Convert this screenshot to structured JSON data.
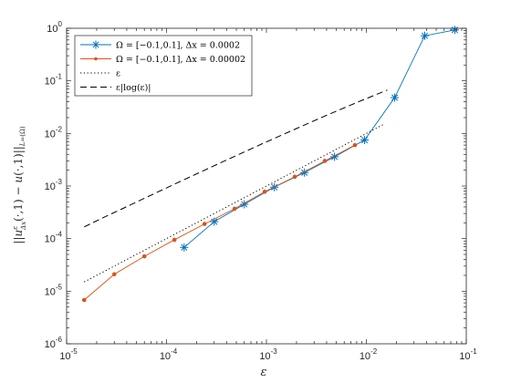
{
  "chart_data": {
    "type": "line",
    "x_scale": "log",
    "y_scale": "log",
    "xlim": [
      1e-05,
      0.1
    ],
    "ylim": [
      1e-06,
      1
    ],
    "xlabel": "ε",
    "ylabel": "||u^ε_Δx(·,1) − u(·,1)||_{L∞(Ω)}",
    "x_ticks": [
      {
        "base": "10",
        "exp": "-5",
        "value": 1e-05
      },
      {
        "base": "10",
        "exp": "-4",
        "value": 0.0001
      },
      {
        "base": "10",
        "exp": "-3",
        "value": 0.001
      },
      {
        "base": "10",
        "exp": "-2",
        "value": 0.01
      },
      {
        "base": "10",
        "exp": "-1",
        "value": 0.1
      }
    ],
    "y_ticks": [
      {
        "base": "10",
        "exp": "-6",
        "value": 1e-06
      },
      {
        "base": "10",
        "exp": "-5",
        "value": 1e-05
      },
      {
        "base": "10",
        "exp": "-4",
        "value": 0.0001
      },
      {
        "base": "10",
        "exp": "-3",
        "value": 0.001
      },
      {
        "base": "10",
        "exp": "-2",
        "value": 0.01
      },
      {
        "base": "10",
        "exp": "-1",
        "value": 0.1
      },
      {
        "base": "10",
        "exp": "0",
        "value": 1
      }
    ],
    "grid": false,
    "legend_position": "top-left",
    "series": [
      {
        "name": "Ω = [−0.1,0.1],  Δx = 0.0002",
        "color": "#0072BD",
        "marker": "asterisk",
        "line": "solid",
        "x": [
          0.00015,
          0.0003,
          0.0006,
          0.0012,
          0.0024,
          0.0048,
          0.0096,
          0.0192,
          0.0384,
          0.0768
        ],
        "y": [
          6.8e-05,
          0.00021,
          0.00045,
          0.00095,
          0.0018,
          0.0036,
          0.0075,
          0.048,
          0.72,
          0.93
        ]
      },
      {
        "name": "Ω = [−0.1,0.1],  Δx = 0.00002",
        "color": "#D95319",
        "marker": "dot",
        "line": "solid",
        "x": [
          1.5e-05,
          3e-05,
          6e-05,
          0.00012,
          0.00024,
          0.00048,
          0.00096,
          0.00192,
          0.00384,
          0.00768
        ],
        "y": [
          6.8e-06,
          2.1e-05,
          4.6e-05,
          9.5e-05,
          0.00019,
          0.00037,
          0.00078,
          0.0015,
          0.003,
          0.006
        ]
      },
      {
        "name": "ε",
        "color": "#000000",
        "marker": "none",
        "line": "dotted",
        "x": [
          1.5e-05,
          0.015
        ],
        "y": [
          1.5e-05,
          0.015
        ]
      },
      {
        "name": "ε|log(ε)|",
        "color": "#000000",
        "marker": "none",
        "line": "dashed",
        "x": [
          1.5e-05,
          2.36e-05,
          3.7e-05,
          5.9e-05,
          9.3e-05,
          0.000147,
          0.000232,
          0.000366,
          0.000578,
          0.000912,
          0.00144,
          0.00227,
          0.00358,
          0.00566,
          0.00893,
          0.0141,
          0.0162
        ],
        "y": [
          0.000167,
          0.000254,
          0.000378,
          0.000576,
          0.000863,
          0.0013,
          0.00194,
          0.0029,
          0.0043,
          0.0064,
          0.0094,
          0.0138,
          0.0202,
          0.0293,
          0.0422,
          0.0601,
          0.0668
        ]
      }
    ]
  }
}
